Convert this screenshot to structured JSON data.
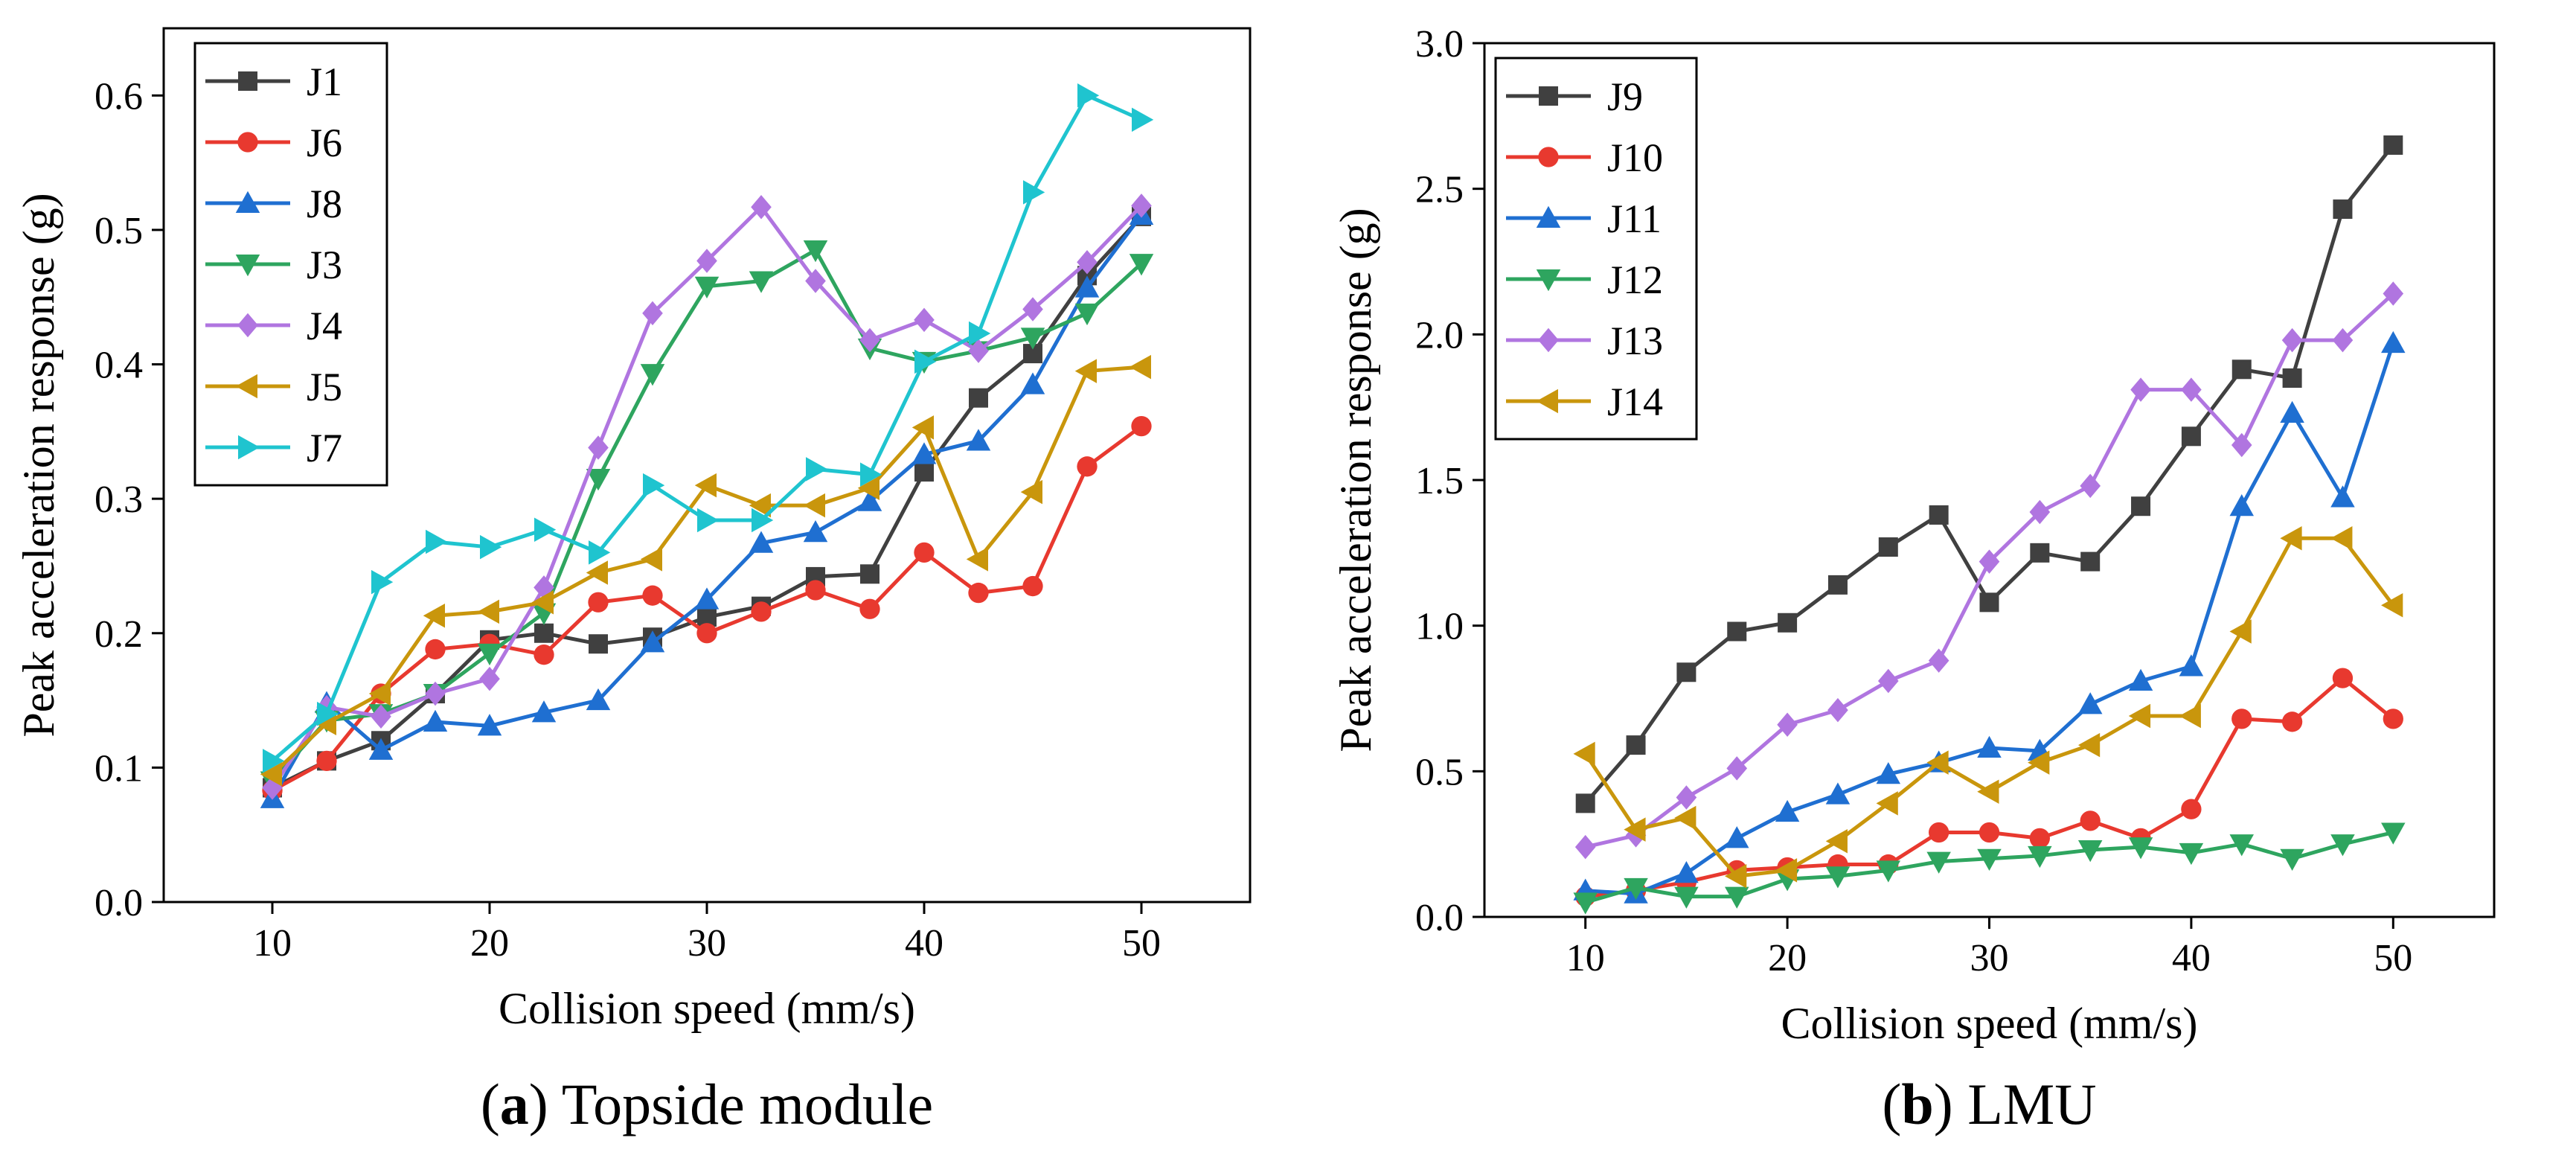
{
  "chart_data": [
    {
      "id": "a",
      "type": "line",
      "caption_letter": "a",
      "caption_text": " Topside module",
      "xlabel": "Collision speed (mm/s)",
      "ylabel": "Peak acceleration response (g)",
      "xlim": [
        5,
        55
      ],
      "ylim": [
        0,
        0.65
      ],
      "xticks": [
        10,
        20,
        30,
        40,
        50
      ],
      "yticks": [
        0.0,
        0.1,
        0.2,
        0.3,
        0.4,
        0.5,
        0.6
      ],
      "ytick_labels": [
        "0.0",
        "0.1",
        "0.2",
        "0.3",
        "0.4",
        "0.5",
        "0.6"
      ],
      "legend_position": "top-left",
      "x": [
        10,
        12.5,
        15,
        17.5,
        20,
        22.5,
        25,
        27.5,
        30,
        32.5,
        35,
        37.5,
        40,
        42.5,
        45,
        47.5,
        50
      ],
      "series": [
        {
          "name": "J1",
          "color": "#404040",
          "marker": "square",
          "values": [
            0.085,
            0.105,
            0.12,
            0.155,
            0.195,
            0.2,
            0.192,
            0.197,
            0.212,
            0.22,
            0.242,
            0.244,
            0.32,
            0.375,
            0.408,
            0.466,
            0.51
          ]
        },
        {
          "name": "J6",
          "color": "#e8392f",
          "marker": "circle",
          "values": [
            0.083,
            0.105,
            0.155,
            0.188,
            0.192,
            0.184,
            0.223,
            0.228,
            0.2,
            0.216,
            0.232,
            0.218,
            0.26,
            0.23,
            0.235,
            0.324,
            0.354
          ]
        },
        {
          "name": "J8",
          "color": "#1f6fd1",
          "marker": "triangle-up",
          "values": [
            0.077,
            0.148,
            0.113,
            0.134,
            0.131,
            0.141,
            0.15,
            0.193,
            0.225,
            0.267,
            0.275,
            0.298,
            0.333,
            0.343,
            0.385,
            0.457,
            0.511
          ]
        },
        {
          "name": "J3",
          "color": "#2ea55f",
          "marker": "triangle-down",
          "values": [
            0.09,
            0.135,
            0.14,
            0.155,
            0.185,
            0.215,
            0.315,
            0.393,
            0.458,
            0.462,
            0.485,
            0.412,
            0.402,
            0.41,
            0.42,
            0.438,
            0.475
          ]
        },
        {
          "name": "J4",
          "color": "#b075e0",
          "marker": "diamond",
          "values": [
            0.085,
            0.145,
            0.138,
            0.155,
            0.166,
            0.234,
            0.338,
            0.438,
            0.477,
            0.517,
            0.462,
            0.418,
            0.433,
            0.41,
            0.441,
            0.476,
            0.518
          ]
        },
        {
          "name": "J5",
          "color": "#c9960c",
          "marker": "triangle-left",
          "values": [
            0.095,
            0.133,
            0.155,
            0.213,
            0.216,
            0.223,
            0.245,
            0.255,
            0.31,
            0.295,
            0.295,
            0.308,
            0.353,
            0.255,
            0.305,
            0.395,
            0.398
          ]
        },
        {
          "name": "J7",
          "color": "#1fc4cf",
          "marker": "triangle-right",
          "values": [
            0.105,
            0.14,
            0.238,
            0.268,
            0.264,
            0.277,
            0.26,
            0.31,
            0.284,
            0.284,
            0.322,
            0.318,
            0.402,
            0.423,
            0.528,
            0.6,
            0.582
          ]
        }
      ]
    },
    {
      "id": "b",
      "type": "line",
      "caption_letter": "b",
      "caption_text": " LMU",
      "xlabel": "Collision speed (mm/s)",
      "ylabel": "Peak acceleration response (g)",
      "xlim": [
        5,
        55
      ],
      "ylim": [
        0,
        3.0
      ],
      "xticks": [
        10,
        20,
        30,
        40,
        50
      ],
      "yticks": [
        0.0,
        0.5,
        1.0,
        1.5,
        2.0,
        2.5,
        3.0
      ],
      "ytick_labels": [
        "0.0",
        "0.5",
        "1.0",
        "1.5",
        "2.0",
        "2.5",
        "3.0"
      ],
      "legend_position": "top-left",
      "x": [
        10,
        12.5,
        15,
        17.5,
        20,
        22.5,
        25,
        27.5,
        30,
        32.5,
        35,
        37.5,
        40,
        42.5,
        45,
        47.5,
        50
      ],
      "series": [
        {
          "name": "J9",
          "color": "#404040",
          "marker": "square",
          "values": [
            0.39,
            0.59,
            0.84,
            0.98,
            1.01,
            1.14,
            1.27,
            1.38,
            1.08,
            1.25,
            1.22,
            1.41,
            1.65,
            1.88,
            1.85,
            2.43,
            2.65
          ]
        },
        {
          "name": "J10",
          "color": "#e8392f",
          "marker": "circle",
          "values": [
            0.07,
            0.09,
            0.12,
            0.16,
            0.17,
            0.18,
            0.18,
            0.29,
            0.29,
            0.27,
            0.33,
            0.27,
            0.37,
            0.68,
            0.67,
            0.82,
            0.68
          ]
        },
        {
          "name": "J11",
          "color": "#1f6fd1",
          "marker": "triangle-up",
          "values": [
            0.09,
            0.08,
            0.15,
            0.27,
            0.36,
            0.42,
            0.49,
            0.53,
            0.58,
            0.57,
            0.73,
            0.81,
            0.86,
            1.41,
            1.73,
            1.44,
            1.97
          ]
        },
        {
          "name": "J12",
          "color": "#2ea55f",
          "marker": "triangle-down",
          "values": [
            0.05,
            0.1,
            0.07,
            0.07,
            0.13,
            0.14,
            0.16,
            0.19,
            0.2,
            0.21,
            0.23,
            0.24,
            0.22,
            0.25,
            0.2,
            0.25,
            0.29
          ]
        },
        {
          "name": "J13",
          "color": "#b075e0",
          "marker": "diamond",
          "values": [
            0.24,
            0.28,
            0.41,
            0.51,
            0.66,
            0.71,
            0.81,
            0.88,
            1.22,
            1.39,
            1.48,
            1.81,
            1.81,
            1.62,
            1.98,
            1.98,
            2.14
          ]
        },
        {
          "name": "J14",
          "color": "#c9960c",
          "marker": "triangle-left",
          "values": [
            0.56,
            0.3,
            0.34,
            0.14,
            0.16,
            0.26,
            0.39,
            0.53,
            0.43,
            0.53,
            0.59,
            0.69,
            0.69,
            0.98,
            1.3,
            1.3,
            1.07
          ]
        }
      ]
    }
  ]
}
